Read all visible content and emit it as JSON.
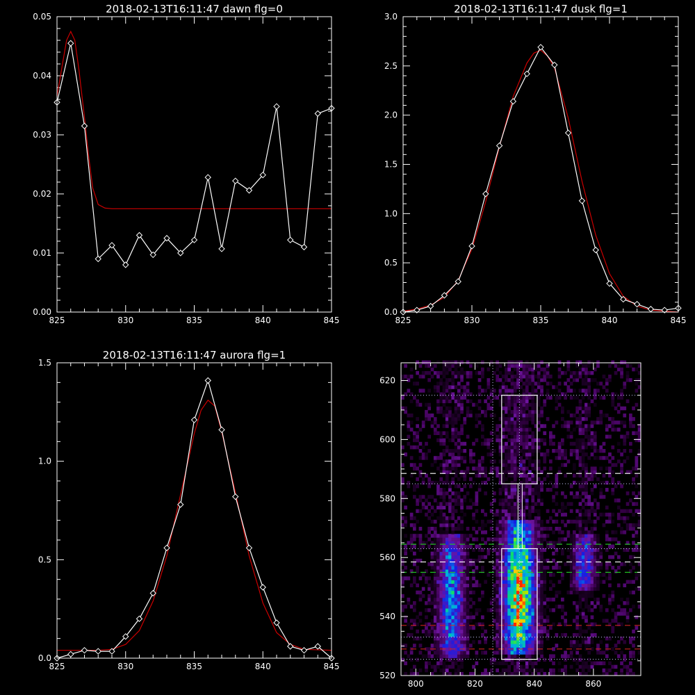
{
  "colors": {
    "background": "#000000",
    "axes": "#ffffff",
    "data_line": "#ffffff",
    "fit_line": "#cc0000",
    "guide_green": "#22cc22",
    "guide_red": "#cc2222",
    "guide_white": "#ffffff",
    "guide_dotted": "#ccccff"
  },
  "chart_data": [
    {
      "type": "line",
      "title": "2018-02-13T16:11:47 dawn flg=0",
      "xlim": [
        825,
        845
      ],
      "ylim": [
        0,
        0.05
      ],
      "xticks": [
        825,
        830,
        835,
        840,
        845
      ],
      "xtick_labels": [
        "825",
        "830",
        "835",
        "840",
        "845"
      ],
      "yticks": [
        0,
        0.01,
        0.02,
        0.03,
        0.04,
        0.05
      ],
      "ytick_labels": [
        "0.00",
        "0.01",
        "0.02",
        "0.03",
        "0.04",
        "0.05"
      ],
      "series": [
        {
          "kind": "data",
          "marker": "diamond",
          "x": [
            825,
            826,
            827,
            828,
            829,
            830,
            831,
            832,
            833,
            834,
            835,
            836,
            837,
            838,
            839,
            840,
            841,
            842,
            843,
            844,
            845
          ],
          "y": [
            0.0355,
            0.0455,
            0.0315,
            0.009,
            0.0113,
            0.008,
            0.013,
            0.0097,
            0.0125,
            0.01,
            0.0122,
            0.0228,
            0.0107,
            0.0222,
            0.0206,
            0.0232,
            0.0348,
            0.0122,
            0.011,
            0.0336,
            0.0345
          ]
        },
        {
          "kind": "fit",
          "x": [
            825,
            825.4,
            825.7,
            826,
            826.3,
            826.6,
            827,
            827.3,
            827.6,
            828,
            828.5,
            829,
            830,
            835,
            840,
            845
          ],
          "y": [
            0.0365,
            0.042,
            0.046,
            0.0475,
            0.046,
            0.041,
            0.033,
            0.0265,
            0.021,
            0.0182,
            0.0176,
            0.0175,
            0.0175,
            0.0175,
            0.0175,
            0.0175
          ]
        }
      ]
    },
    {
      "type": "line",
      "title": "2018-02-13T16:11:47 dusk flg=1",
      "xlim": [
        825,
        845
      ],
      "ylim": [
        0,
        3.0
      ],
      "xticks": [
        825,
        830,
        835,
        840,
        845
      ],
      "xtick_labels": [
        "825",
        "830",
        "835",
        "840",
        "845"
      ],
      "yticks": [
        0,
        0.5,
        1.0,
        1.5,
        2.0,
        2.5,
        3.0
      ],
      "ytick_labels": [
        "0.0",
        "0.5",
        "1.0",
        "1.5",
        "2.0",
        "2.5",
        "3.0"
      ],
      "series": [
        {
          "kind": "data",
          "marker": "diamond",
          "x": [
            825,
            826,
            827,
            828,
            829,
            830,
            831,
            832,
            833,
            834,
            835,
            836,
            837,
            838,
            839,
            840,
            841,
            842,
            843,
            844,
            845
          ],
          "y": [
            0.0,
            0.02,
            0.06,
            0.17,
            0.31,
            0.67,
            1.2,
            1.69,
            2.14,
            2.42,
            2.69,
            2.51,
            1.82,
            1.13,
            0.63,
            0.29,
            0.13,
            0.08,
            0.03,
            0.02,
            0.04
          ]
        },
        {
          "kind": "fit",
          "x": [
            825,
            826,
            827,
            828,
            829,
            830,
            831,
            832,
            833,
            834,
            834.5,
            835,
            835.5,
            836,
            837,
            838,
            839,
            840,
            841,
            842,
            843,
            844,
            845
          ],
          "y": [
            0.01,
            0.03,
            0.07,
            0.15,
            0.32,
            0.64,
            1.12,
            1.68,
            2.19,
            2.53,
            2.63,
            2.66,
            2.6,
            2.48,
            1.97,
            1.33,
            0.78,
            0.39,
            0.16,
            0.06,
            0.02,
            0.01,
            0.0
          ]
        }
      ]
    },
    {
      "type": "line",
      "title": "2018-02-13T16:11:47 aurora flg=1",
      "xlim": [
        825,
        845
      ],
      "ylim": [
        0,
        1.5
      ],
      "xticks": [
        825,
        830,
        835,
        840,
        845
      ],
      "xtick_labels": [
        "825",
        "830",
        "835",
        "840",
        "845"
      ],
      "yticks": [
        0,
        0.5,
        1.0,
        1.5
      ],
      "ytick_labels": [
        "0.0",
        "0.5",
        "1.0",
        "1.5"
      ],
      "series": [
        {
          "kind": "data",
          "marker": "diamond",
          "x": [
            825,
            826,
            827,
            828,
            829,
            830,
            831,
            832,
            833,
            834,
            835,
            836,
            837,
            838,
            839,
            840,
            841,
            842,
            843,
            844,
            845
          ],
          "y": [
            0.0,
            0.02,
            0.04,
            0.035,
            0.035,
            0.11,
            0.2,
            0.33,
            0.56,
            0.78,
            1.21,
            1.41,
            1.16,
            0.82,
            0.56,
            0.36,
            0.18,
            0.06,
            0.04,
            0.06,
            0.0
          ]
        },
        {
          "kind": "fit",
          "x": [
            825,
            827,
            828,
            829,
            830,
            831,
            832,
            833,
            834,
            835,
            835.5,
            836,
            836.5,
            837,
            838,
            839,
            840,
            841,
            842,
            843,
            845
          ],
          "y": [
            0.04,
            0.04,
            0.04,
            0.045,
            0.07,
            0.14,
            0.29,
            0.52,
            0.83,
            1.14,
            1.26,
            1.31,
            1.28,
            1.15,
            0.84,
            0.52,
            0.28,
            0.13,
            0.07,
            0.045,
            0.04
          ]
        }
      ]
    },
    {
      "type": "heatmap",
      "title": "",
      "xlim": [
        795,
        876
      ],
      "ylim": [
        520,
        626
      ],
      "xticks": [
        800,
        820,
        840,
        860
      ],
      "xtick_labels": [
        "800",
        "820",
        "840",
        "860"
      ],
      "yticks": [
        520,
        540,
        560,
        580,
        600,
        620
      ],
      "ytick_labels": [
        "520",
        "540",
        "560",
        "580",
        "600",
        "620"
      ],
      "emission_bands": [
        {
          "x_center": 812,
          "x_width": 5,
          "y_range": [
            526,
            568
          ],
          "peak": 0.55
        },
        {
          "x_center": 835,
          "x_width": 6,
          "y_range": [
            527,
            572
          ],
          "peak": 1.0
        },
        {
          "x_center": 857,
          "x_width": 4.5,
          "y_range": [
            548,
            568
          ],
          "peak": 0.4
        }
      ],
      "boxes": [
        {
          "x": [
            829,
            841
          ],
          "y": [
            585,
            615
          ]
        },
        {
          "x": [
            829,
            841
          ],
          "y": [
            525.5,
            563
          ]
        }
      ],
      "vertical_dotted_lines": [
        826,
        835
      ],
      "horizontal_dotted_lines": [
        615,
        585,
        563,
        533,
        525.5
      ],
      "white_dashed_lines": [
        588.5,
        558.5
      ],
      "green_dashed_lines": [
        564.5,
        555
      ],
      "red_dashed_lines": [
        537,
        529
      ]
    }
  ]
}
